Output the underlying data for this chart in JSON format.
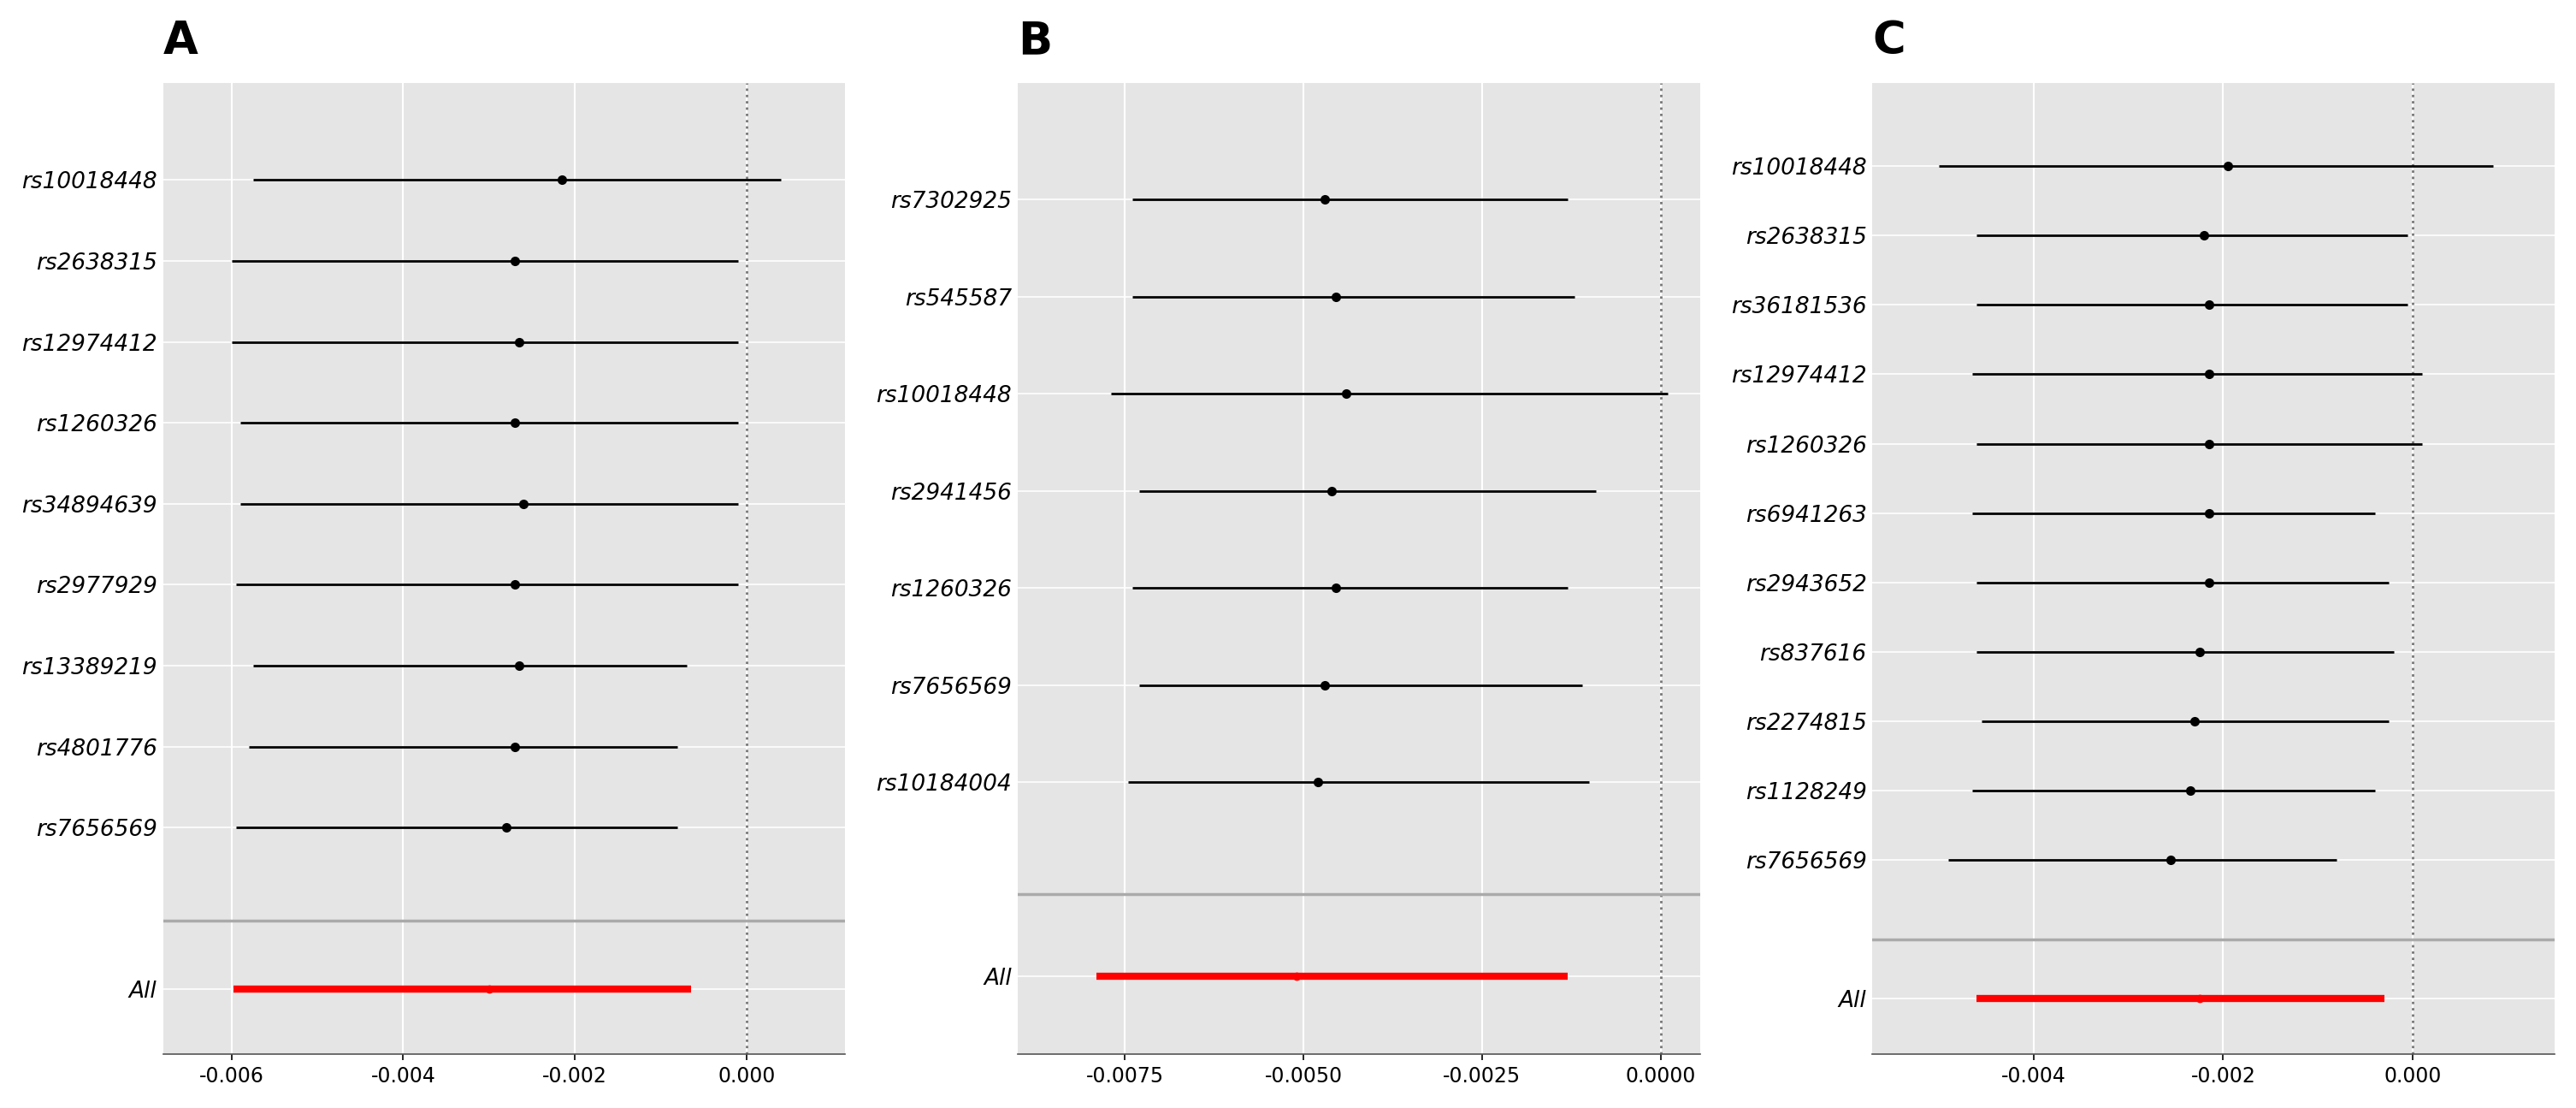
{
  "panel_A": {
    "label": "A",
    "snps": [
      "rs10018448",
      "rs2638315",
      "rs12974412",
      "rs1260326",
      "rs34894639",
      "rs2977929",
      "rs13389219",
      "rs4801776",
      "rs7656569"
    ],
    "point": [
      -0.00215,
      -0.0027,
      -0.00265,
      -0.0027,
      -0.0026,
      -0.0027,
      -0.00265,
      -0.0027,
      -0.0028
    ],
    "ci_low": [
      -0.00575,
      -0.006,
      -0.006,
      -0.0059,
      -0.0059,
      -0.00595,
      -0.00575,
      -0.0058,
      -0.00595
    ],
    "ci_high": [
      0.0004,
      -0.0001,
      -0.0001,
      -0.0001,
      -0.0001,
      -0.0001,
      -0.0007,
      -0.0008,
      -0.0008
    ],
    "all_point": -0.003,
    "all_low": -0.00598,
    "all_high": -0.00065,
    "xlim": [
      -0.0068,
      0.00115
    ],
    "xticks": [
      -0.006,
      -0.004,
      -0.002,
      0.0
    ],
    "xtick_labels": [
      "-0.006",
      "-0.004",
      "-0.002",
      "0.000"
    ]
  },
  "panel_B": {
    "label": "B",
    "snps": [
      "rs7302925",
      "rs545587",
      "rs10018448",
      "rs2941456",
      "rs1260326",
      "rs7656569",
      "rs10184004"
    ],
    "point": [
      -0.0047,
      -0.00455,
      -0.0044,
      -0.0046,
      -0.00455,
      -0.0047,
      -0.0048
    ],
    "ci_low": [
      -0.0074,
      -0.0074,
      -0.0077,
      -0.0073,
      -0.0074,
      -0.0073,
      -0.00745
    ],
    "ci_high": [
      -0.0013,
      -0.0012,
      0.0001,
      -0.0009,
      -0.0013,
      -0.0011,
      -0.001
    ],
    "all_point": -0.0051,
    "all_low": -0.0079,
    "all_high": -0.0013,
    "xlim": [
      -0.009,
      0.00055
    ],
    "xticks": [
      -0.0075,
      -0.005,
      -0.0025,
      0.0
    ],
    "xtick_labels": [
      "-0.0075",
      "-0.0050",
      "-0.0025",
      "0.0000"
    ]
  },
  "panel_C": {
    "label": "C",
    "snps": [
      "rs10018448",
      "rs2638315",
      "rs36181536",
      "rs12974412",
      "rs1260326",
      "rs6941263",
      "rs2943652",
      "rs837616",
      "rs2274815",
      "rs1128249",
      "rs7656569"
    ],
    "point": [
      -0.00195,
      -0.0022,
      -0.00215,
      -0.00215,
      -0.00215,
      -0.00215,
      -0.00215,
      -0.00225,
      -0.0023,
      -0.00235,
      -0.00255
    ],
    "ci_low": [
      -0.005,
      -0.0046,
      -0.0046,
      -0.00465,
      -0.0046,
      -0.00465,
      -0.0046,
      -0.0046,
      -0.00455,
      -0.00465,
      -0.0049
    ],
    "ci_high": [
      0.00085,
      -5e-05,
      -5e-05,
      0.0001,
      0.0001,
      -0.0004,
      -0.00025,
      -0.0002,
      -0.00025,
      -0.0004,
      -0.0008
    ],
    "all_point": -0.00225,
    "all_low": -0.0046,
    "all_high": -0.0003,
    "xlim": [
      -0.0057,
      0.0015
    ],
    "xticks": [
      -0.004,
      -0.002,
      0.0
    ],
    "xtick_labels": [
      "-0.004",
      "-0.002",
      "0.000"
    ]
  },
  "bg_color": "#e5e5e5",
  "grid_color": "#ffffff",
  "point_color": "#000000",
  "line_color": "#000000",
  "all_color": "#ff0000",
  "sep_color": "#aaaaaa",
  "dotted_color": "#777777"
}
